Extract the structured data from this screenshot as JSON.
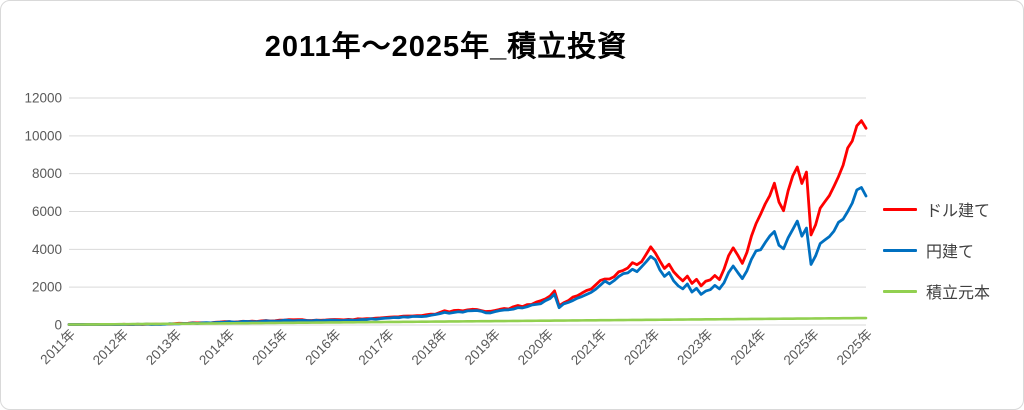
{
  "title": {
    "text": "2011年〜2025年_積立投資"
  },
  "style": {
    "background": "#ffffff",
    "frame_border": "#d9d9d9",
    "gridline_color": "#d9d9d9",
    "axis_label_color": "#595959",
    "legend_text_color": "#404040",
    "title_color": "#000000"
  },
  "chart_data": {
    "type": "line",
    "title": "2011年〜2025年_積立投資",
    "grid": "horizontal",
    "legend_position": "right",
    "ylim": [
      0,
      12000
    ],
    "y_ticks": [
      0,
      2000,
      4000,
      6000,
      8000,
      10000,
      12000
    ],
    "x_tick_labels": [
      "2011年",
      "2012年",
      "2013年",
      "2014年",
      "2015年",
      "2016年",
      "2017年",
      "2018年",
      "2019年",
      "2020年",
      "2021年",
      "2022年",
      "2023年",
      "2024年",
      "2025年",
      "2025年"
    ],
    "x_range_note": "monthly points Jan 2011 - mid 2025",
    "series": [
      {
        "name": "ドル建て",
        "color": "#FF0000",
        "values": [
          5,
          9,
          14,
          12,
          18,
          22,
          26,
          19,
          11,
          9,
          15,
          22,
          28,
          33,
          30,
          37,
          34,
          40,
          45,
          42,
          49,
          54,
          58,
          70,
          80,
          76,
          90,
          102,
          98,
          112,
          126,
          122,
          138,
          152,
          166,
          180,
          172,
          188,
          196,
          192,
          205,
          200,
          214,
          224,
          220,
          234,
          246,
          258,
          268,
          262,
          272,
          265,
          248,
          238,
          254,
          264,
          259,
          272,
          283,
          268,
          258,
          276,
          292,
          306,
          300,
          320,
          338,
          352,
          368,
          388,
          408,
          428,
          420,
          444,
          462,
          482,
          476,
          504,
          528,
          552,
          582,
          660,
          730,
          680,
          740,
          770,
          745,
          790,
          825,
          845,
          780,
          690,
          725,
          780,
          840,
          890,
          870,
          940,
          1000,
          970,
          1060,
          1120,
          1180,
          1260,
          1380,
          1560,
          1790,
          1020,
          1190,
          1320,
          1450,
          1560,
          1650,
          1780,
          1900,
          2120,
          2350,
          2480,
          2420,
          2610,
          2780,
          2920,
          3080,
          3240,
          3120,
          3380,
          3700,
          4080,
          3880,
          3350,
          2980,
          3260,
          2850,
          2500,
          2340,
          2620,
          2160,
          2450,
          2100,
          2280,
          2380,
          2650,
          2430,
          3000,
          3600,
          4120,
          3750,
          3320,
          3850,
          4700,
          5450,
          5750,
          6300,
          6900,
          7500,
          6600,
          6150,
          7100,
          7800,
          8300,
          7600,
          8100,
          4680,
          5300,
          6100,
          6500,
          6900,
          7400,
          7850,
          8500,
          9200,
          9800,
          10650,
          10900,
          10400
        ]
      },
      {
        "name": "円建て",
        "color": "#0070C0",
        "values": [
          5,
          8,
          13,
          11,
          16,
          20,
          24,
          17,
          10,
          8,
          13,
          20,
          26,
          31,
          28,
          34,
          32,
          37,
          42,
          39,
          46,
          50,
          54,
          64,
          74,
          70,
          83,
          94,
          90,
          103,
          116,
          112,
          127,
          140,
          153,
          166,
          158,
          173,
          180,
          176,
          188,
          184,
          197,
          206,
          202,
          215,
          226,
          237,
          246,
          240,
          250,
          243,
          227,
          218,
          233,
          242,
          237,
          249,
          259,
          245,
          236,
          253,
          268,
          281,
          275,
          293,
          310,
          323,
          338,
          356,
          374,
          392,
          385,
          407,
          424,
          442,
          436,
          462,
          484,
          506,
          535,
          604,
          660,
          632,
          678,
          705,
          684,
          725,
          752,
          772,
          712,
          630,
          662,
          712,
          768,
          814,
          795,
          860,
          915,
          888,
          970,
          1025,
          1080,
          1152,
          1262,
          1427,
          1637,
          933,
          1088,
          1207,
          1326,
          1427,
          1509,
          1628,
          1737,
          1939,
          2150,
          2270,
          2210,
          2390,
          2540,
          2670,
          2820,
          2960,
          2850,
          3090,
          3380,
          3640,
          3420,
          2870,
          2520,
          2760,
          2380,
          2060,
          1890,
          2120,
          1700,
          1940,
          1620,
          1780,
          1850,
          2050,
          1870,
          2280,
          2720,
          3080,
          2780,
          2450,
          2840,
          3420,
          3900,
          4050,
          4350,
          4650,
          4880,
          4300,
          4000,
          4550,
          5050,
          5400,
          4700,
          5100,
          3150,
          3700,
          4250,
          4500,
          4750,
          5050,
          5350,
          5700,
          6050,
          6350,
          7050,
          7250,
          6900
        ]
      },
      {
        "name": "積立元本",
        "color": "#92D050",
        "values": [
          20,
          22,
          24,
          26,
          28,
          30,
          32,
          34,
          36,
          38,
          40,
          42,
          44,
          46,
          48,
          50,
          52,
          54,
          56,
          58,
          60,
          62,
          64,
          66,
          68,
          70,
          72,
          74,
          76,
          78,
          80,
          82,
          84,
          86,
          88,
          90,
          92,
          94,
          96,
          98,
          100,
          102,
          104,
          106,
          108,
          110,
          112,
          114,
          116,
          118,
          120,
          122,
          124,
          126,
          128,
          130,
          132,
          134,
          136,
          138,
          140,
          142,
          144,
          146,
          148,
          150,
          152,
          154,
          156,
          158,
          160,
          162,
          164,
          166,
          168,
          170,
          172,
          174,
          176,
          178,
          180,
          182,
          184,
          186,
          188,
          190,
          192,
          194,
          196,
          198,
          200,
          202,
          204,
          206,
          208,
          210,
          212,
          214,
          216,
          218,
          220,
          222,
          224,
          226,
          228,
          230,
          232,
          234,
          236,
          238,
          240,
          242,
          244,
          246,
          248,
          250,
          252,
          254,
          256,
          258,
          260,
          262,
          264,
          266,
          268,
          270,
          272,
          274,
          276,
          278,
          280,
          282,
          284,
          286,
          288,
          290,
          292,
          294,
          296,
          298,
          300,
          302,
          304,
          306,
          308,
          310,
          312,
          314,
          316,
          318,
          320,
          322,
          324,
          326,
          328,
          330,
          332,
          334,
          336,
          338,
          340,
          342,
          344,
          346,
          348,
          350,
          352,
          354,
          356,
          358,
          360,
          362,
          364,
          366,
          368
        ]
      }
    ]
  }
}
